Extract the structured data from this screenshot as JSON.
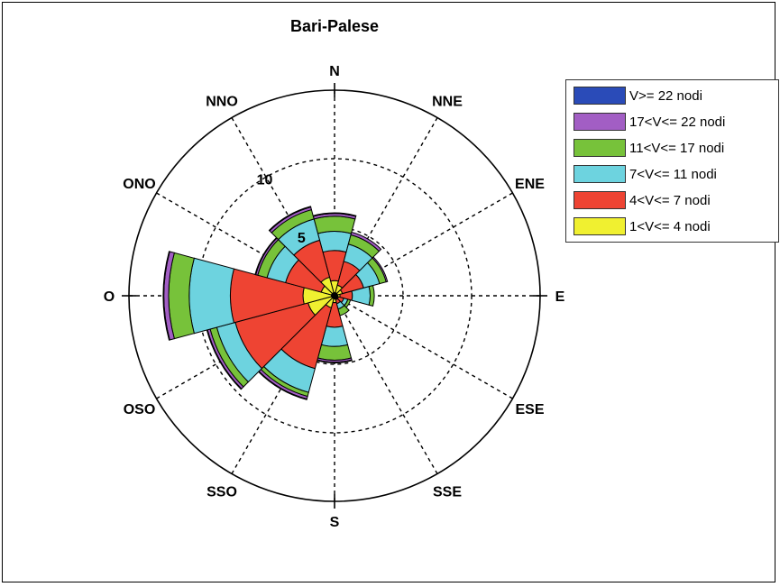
{
  "chart_data": {
    "type": "windrose",
    "title": "Bari-Palese",
    "directions": [
      "N",
      "NNE",
      "ENE",
      "E",
      "ESE",
      "SSE",
      "S",
      "SSO",
      "OSO",
      "O",
      "ONO",
      "NNO"
    ],
    "r_ticks": [
      {
        "value": 5,
        "label": "5"
      },
      {
        "value": 10,
        "label": "10"
      }
    ],
    "r_max": 15,
    "grid": true,
    "legend_position": "top-right",
    "series": [
      {
        "name": "1<V<= 4  nodi",
        "color": "#f0f030",
        "values": [
          1.1,
          0.8,
          0.6,
          0.4,
          0.3,
          0.3,
          0.5,
          0.9,
          2.0,
          2.3,
          1.0,
          1.4
        ]
      },
      {
        "name": "4<V<= 7  nodi",
        "color": "#ee4433",
        "values": [
          2.2,
          1.8,
          1.6,
          0.9,
          0.4,
          0.3,
          1.8,
          4.6,
          5.5,
          5.3,
          2.7,
          2.8
        ]
      },
      {
        "name": "7<V<= 11  nodi",
        "color": "#6dd3df",
        "values": [
          1.4,
          1.3,
          1.2,
          1.3,
          0.3,
          0.4,
          1.4,
          1.8,
          1.4,
          3.0,
          1.4,
          1.6
        ]
      },
      {
        "name": "11<V<= 17  nodi",
        "color": "#77c23a",
        "values": [
          1.1,
          0.7,
          0.5,
          0.3,
          0.2,
          0.5,
          1.0,
          0.3,
          0.5,
          1.5,
          0.7,
          0.7
        ]
      },
      {
        "name": "17<V<= 22  nodi",
        "color": "#a25ec4",
        "values": [
          0.2,
          0.2,
          0.1,
          0.0,
          0.0,
          0.0,
          0.15,
          0.2,
          0.2,
          0.35,
          0.15,
          0.2
        ]
      },
      {
        "name": "V>= 22  nodi",
        "color": "#2a4bb8",
        "values": [
          0.05,
          0.0,
          0.0,
          0.0,
          0.0,
          0.0,
          0.05,
          0.05,
          0.05,
          0.05,
          0.05,
          0.05
        ]
      }
    ]
  }
}
